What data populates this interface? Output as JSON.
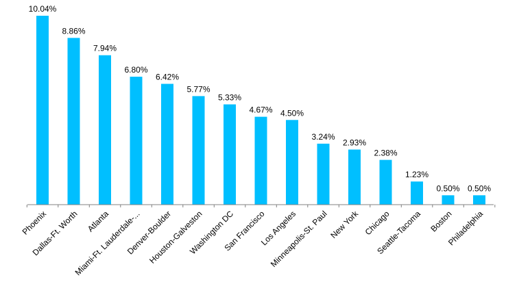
{
  "chart_data": {
    "type": "bar",
    "title": "",
    "xlabel": "",
    "ylabel": "",
    "categories": [
      "Phoenix",
      "Dallas-Ft. Worth",
      "Atlanta",
      "Miami-Ft. Lauderdale-...",
      "Denver-Boulder",
      "Houston-Galveston",
      "Washington DC",
      "San Francisco",
      "Los Angeles",
      "Minneapolis-St. Paul",
      "New York",
      "Chicago",
      "Seattle-Tacoma",
      "Boston",
      "Philadelphia"
    ],
    "values": [
      10.04,
      8.86,
      7.94,
      6.8,
      6.42,
      5.77,
      5.33,
      4.67,
      4.5,
      3.24,
      2.93,
      2.38,
      1.23,
      0.5,
      0.5
    ],
    "value_labels": [
      "10.04%",
      "8.86%",
      "7.94%",
      "6.80%",
      "6.42%",
      "5.77%",
      "5.33%",
      "4.67%",
      "4.50%",
      "3.24%",
      "2.93%",
      "2.38%",
      "1.23%",
      "0.50%",
      "0.50%"
    ],
    "ylim": [
      0,
      10.04
    ],
    "grid": false,
    "legend": "none",
    "bar_color": "#00BFFF",
    "axis_color": "#808080"
  }
}
